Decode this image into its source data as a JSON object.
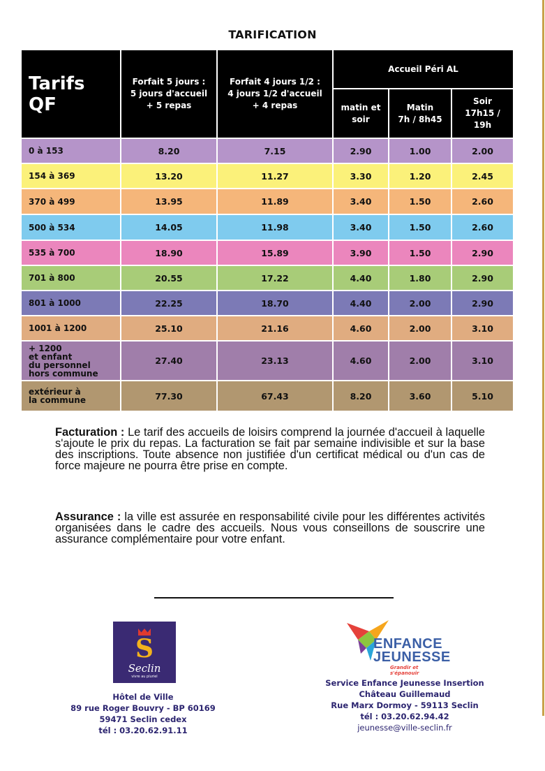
{
  "title": "TARIFICATION",
  "table": {
    "qf_header": "Tarifs QF",
    "col_5days": "Forfait  5 jours :\n5 jours d'accueil\n+ 5 repas",
    "col_45days": "Forfait 4  jours 1/2 :\n4 jours  1/2 d'accueil\n+ 4 repas",
    "peri_group": "Accueil Péri AL",
    "col_matin_soir": "matin et\nsoir",
    "col_matin": "Matin\n7h / 8h45",
    "col_soir": "Soir\n17h15 /\n19h",
    "rows": [
      {
        "qf": "0 à 153",
        "f5": "8.20",
        "f45": "7.15",
        "ms": "2.90",
        "m": "1.00",
        "s": "2.00",
        "color": "#b594c9"
      },
      {
        "qf": "154 à 369",
        "f5": "13.20",
        "f45": "11.27",
        "ms": "3.30",
        "m": "1.20",
        "s": "2.45",
        "color": "#fbf17a"
      },
      {
        "qf": "370 à 499",
        "f5": "13.95",
        "f45": "11.89",
        "ms": "3.40",
        "m": "1.50",
        "s": "2.60",
        "color": "#f5b67a"
      },
      {
        "qf": "500 à 534",
        "f5": "14.05",
        "f45": "11.98",
        "ms": "3.40",
        "m": "1.50",
        "s": "2.60",
        "color": "#7fcbee"
      },
      {
        "qf": "535 à 700",
        "f5": "18.90",
        "f45": "15.89",
        "ms": "3.90",
        "m": "1.50",
        "s": "2.90",
        "color": "#eb86bd"
      },
      {
        "qf": "701 à 800",
        "f5": "20.55",
        "f45": "17.22",
        "ms": "4.40",
        "m": "1.80",
        "s": "2.90",
        "color": "#a8cc78"
      },
      {
        "qf": "801 à 1000",
        "f5": "22.25",
        "f45": "18.70",
        "ms": "4.40",
        "m": "2.00",
        "s": "2.90",
        "color": "#7c7ab6"
      },
      {
        "qf": "1001 à 1200",
        "f5": "25.10",
        "f45": "21.16",
        "ms": "4.60",
        "m": "2.00",
        "s": "3.10",
        "color": "#e0ac80"
      },
      {
        "qf": "  + 1200\net enfant\ndu personnel\nhors commune",
        "f5": "27.40",
        "f45": "23.13",
        "ms": "4.60",
        "m": "2.00",
        "s": "3.10",
        "color": "#a07eaa"
      },
      {
        "qf": "extérieur à\nla commune",
        "f5": "77.30",
        "f45": "67.43",
        "ms": "8.20",
        "m": "3.60",
        "s": "5.10",
        "color": "#b19770"
      }
    ]
  },
  "facturation": {
    "label": "Facturation :",
    "text": "  Le tarif des accueils de loisirs comprend la journée d'accueil à laquelle s'ajoute le prix du repas. La facturation se fait par semaine indivisible et sur la base des inscriptions. Toute absence non justifiée d'un certificat médical ou d'un cas de force majeure ne pourra être prise en compte."
  },
  "assurance": {
    "label": "Assurance :",
    "text": "  la ville est assurée en responsabilité civile pour les différentes activités organisées dans le cadre des accueils. Nous vous conseillons de souscrire une  assurance complémentaire pour votre enfant."
  },
  "seclin_logo": {
    "name": "Seclin",
    "tagline": "vivre au pluriel"
  },
  "hotel": {
    "name": "Hôtel de Ville",
    "address": "89 rue Roger Bouvry - BP 60169",
    "city": "59471 Seclin cedex",
    "phone": "tél : 03.20.62.91.11"
  },
  "ej_logo": {
    "line1": "ENFANCE",
    "line2": "JEUNESSE",
    "tagline": "Grandir et s'épanouir"
  },
  "service": {
    "name": "Service Enfance Jeunesse Insertion",
    "place": "Château Guillemaud",
    "address": "Rue Marx Dormoy - 59113 Seclin",
    "phone": "tél : 03.20.62.94.42",
    "email": "jeunesse@ville-seclin.fr"
  },
  "colors": {
    "header_bg": "#000000",
    "accent_rule": "#c8a24a",
    "address_text": "#2c2570",
    "seclin_brand": "#3a2a73"
  }
}
